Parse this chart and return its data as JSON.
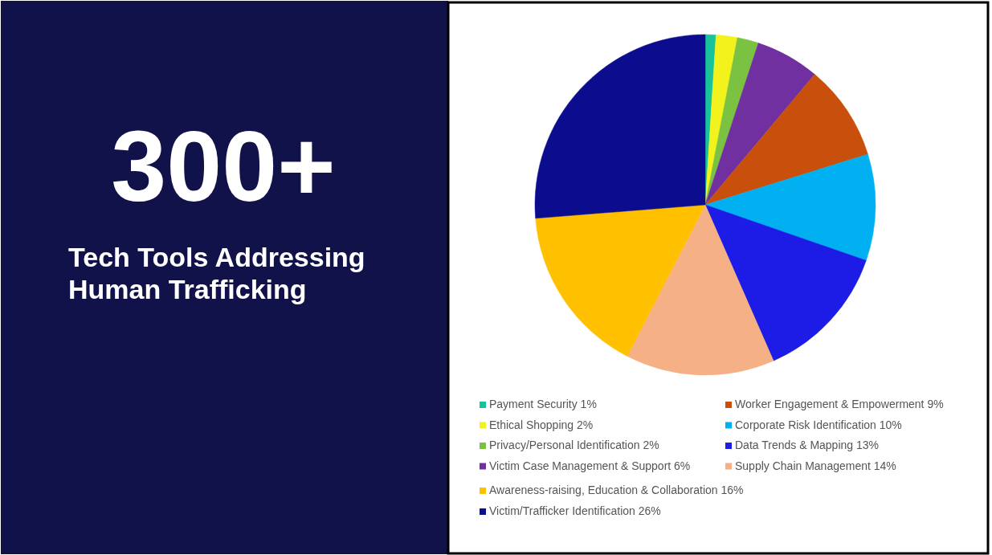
{
  "chart_data": {
    "type": "pie",
    "title": "300+",
    "subtitle": "Tech Tools Addressing Human Trafficking",
    "legend": "bottom",
    "categories": [
      "Payment Security",
      "Ethical Shopping",
      "Privacy/Personal Identification",
      "Victim Case Management & Support",
      "Worker Engagement & Empowerment",
      "Corporate Risk Identification",
      "Data Trends & Mapping",
      "Supply Chain Management",
      "Awareness-raising, Education & Collaboration",
      "Victim/Trafficker Identification"
    ],
    "values": [
      1,
      2,
      2,
      6,
      9,
      10,
      13,
      14,
      16,
      26
    ],
    "value_labels": [
      "1%",
      "2%",
      "2%",
      "6%",
      "9%",
      "10%",
      "13%",
      "14%",
      "16%",
      "26%"
    ],
    "colors": [
      "#17c39a",
      "#f2f21c",
      "#7cc242",
      "#7030a0",
      "#c84f0c",
      "#00b0f0",
      "#1c1ce6",
      "#f6b085",
      "#ffc000",
      "#0c0c8e"
    ]
  }
}
